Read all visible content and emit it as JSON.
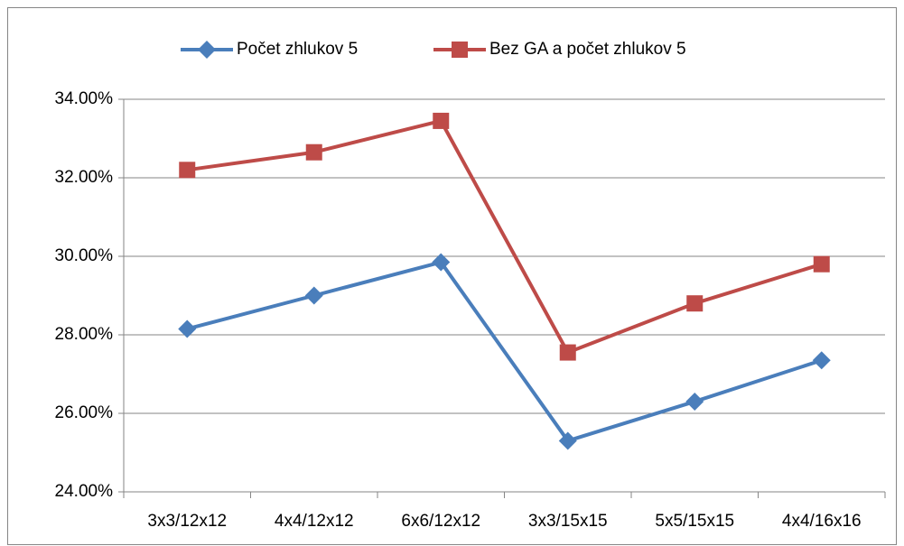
{
  "chart_data": {
    "type": "line",
    "categories": [
      "3x3/12x12",
      "4x4/12x12",
      "6x6/12x12",
      "3x3/15x15",
      "5x5/15x15",
      "4x4/16x16"
    ],
    "series": [
      {
        "name": "Počet zhlukov 5",
        "color": "#4a7ebb",
        "marker": "diamond",
        "values": [
          28.15,
          29.0,
          29.85,
          25.3,
          26.3,
          27.35
        ]
      },
      {
        "name": "Bez GA a počet zhlukov 5",
        "color": "#be4b48",
        "marker": "square",
        "values": [
          32.2,
          32.65,
          33.45,
          27.55,
          28.8,
          29.8
        ]
      }
    ],
    "ylim": [
      24,
      34
    ],
    "yticks": [
      {
        "value": 24,
        "label": "24.00%"
      },
      {
        "value": 26,
        "label": "26.00%"
      },
      {
        "value": 28,
        "label": "28.00%"
      },
      {
        "value": 30,
        "label": "30.00%"
      },
      {
        "value": 32,
        "label": "32.00%"
      },
      {
        "value": 34,
        "label": "34.00%"
      }
    ],
    "grid": true,
    "legend": "top"
  }
}
